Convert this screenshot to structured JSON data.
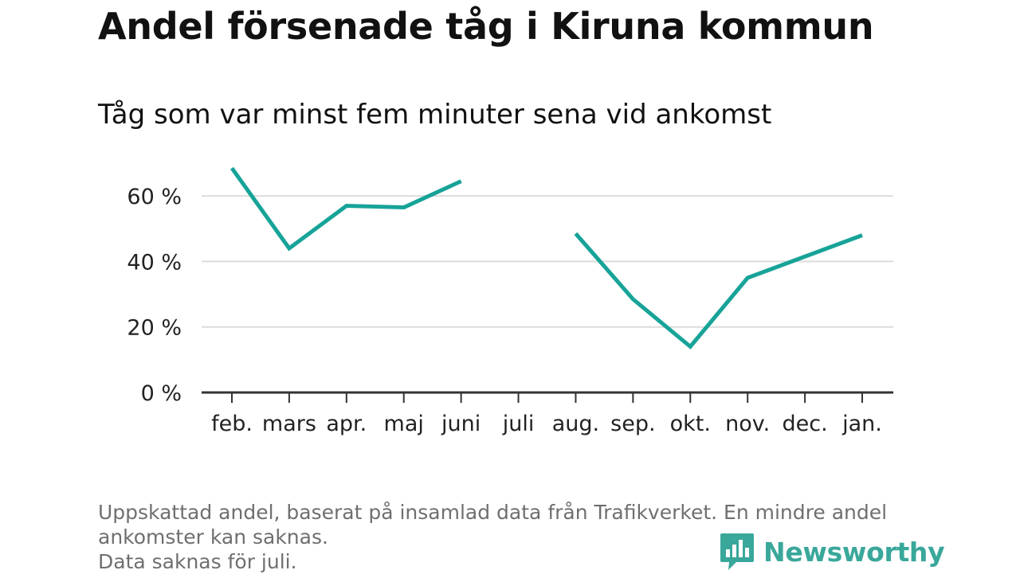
{
  "chart_data": {
    "type": "line",
    "title": "Andel försenade tåg i Kiruna kommun",
    "subtitle": "Tåg som var minst fem minuter sena vid ankomst",
    "categories": [
      "feb.",
      "mars",
      "apr.",
      "maj",
      "juni",
      "juli",
      "aug.",
      "sep.",
      "okt.",
      "nov.",
      "dec.",
      "jan."
    ],
    "series": [
      {
        "values": [
          68.5,
          44,
          57,
          56.5,
          64.5,
          null,
          48.5,
          28.5,
          14,
          35,
          41.5,
          48
        ]
      }
    ],
    "y_ticks": [
      0,
      20,
      40,
      60
    ],
    "y_tick_labels": [
      "0 %",
      "20 %",
      "40 %",
      "60 %"
    ],
    "ylim": [
      0,
      70
    ],
    "grid": true,
    "colors": {
      "line": "#17a398",
      "grid": "#dcdcdc",
      "axis": "#333333"
    }
  },
  "footnote": {
    "line1": "Uppskattad andel, baserat på insamlad data från Trafikverket. En mindre andel",
    "line2": "ankomster kan saknas.",
    "line3": "Data saknas för juli."
  },
  "brand": {
    "name": "Newsworthy",
    "icon": "bar-chart-speech-bubble-icon",
    "color": "#3aa79b"
  }
}
